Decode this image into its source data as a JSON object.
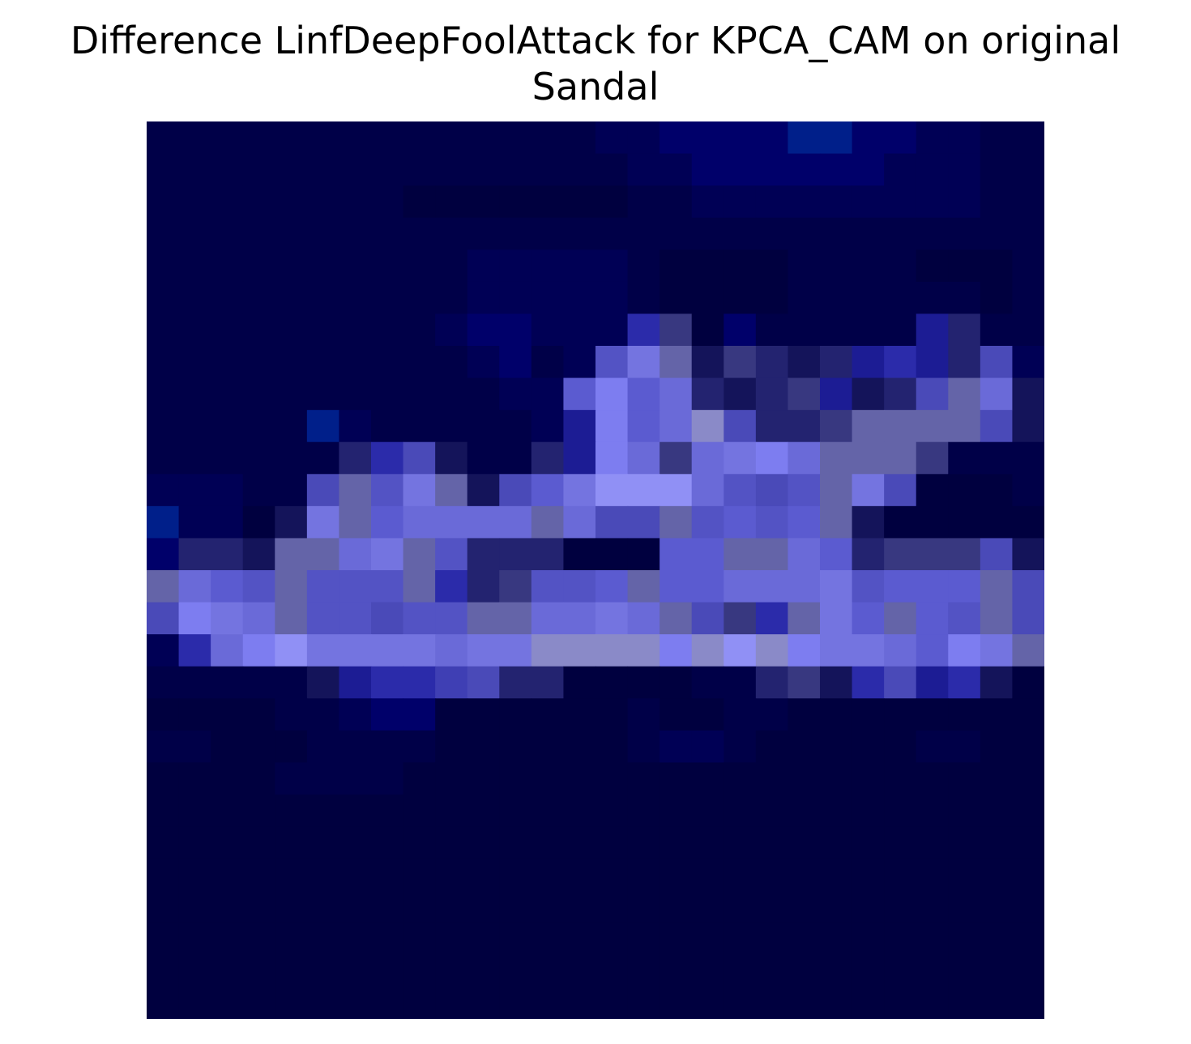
{
  "chart_data": {
    "type": "heatmap",
    "title_line1": "Difference LinfDeepFoolAttack for KPCA_CAM on original",
    "title_line2": "Sandal",
    "xlabel": "",
    "ylabel": "",
    "axes_visible": false,
    "grid": false,
    "legend": "none",
    "rows": 28,
    "cols": 28,
    "colormap": "dark-navy to light-periwinkle",
    "palette": {
      "0": "#00003f",
      "1": "#000048",
      "2": "#000055",
      "3": "#00006a",
      "4": "#001f8a",
      "5": "#14145a",
      "6": "#232370",
      "7": "#1c1c94",
      "8": "#2b2baa",
      "9": "#383880",
      "10": "#3f3fb4",
      "11": "#4a4ab8",
      "12": "#5353c4",
      "13": "#5b5bd0",
      "14": "#6464a8",
      "15": "#6a6ad8",
      "16": "#7474e0",
      "17": "#7d7df0",
      "18": "#8a8ac8",
      "19": "#9090f5"
    },
    "values": [
      [
        1,
        1,
        1,
        1,
        1,
        1,
        1,
        1,
        1,
        1,
        1,
        1,
        1,
        1,
        2,
        2,
        3,
        3,
        3,
        3,
        4,
        4,
        3,
        3,
        2,
        2,
        1,
        1
      ],
      [
        1,
        1,
        1,
        1,
        1,
        1,
        1,
        1,
        1,
        1,
        1,
        1,
        1,
        1,
        1,
        2,
        2,
        3,
        3,
        3,
        3,
        3,
        3,
        2,
        2,
        2,
        1,
        1
      ],
      [
        1,
        1,
        1,
        1,
        1,
        1,
        1,
        1,
        0,
        0,
        0,
        0,
        0,
        0,
        0,
        1,
        1,
        2,
        2,
        2,
        2,
        2,
        2,
        2,
        2,
        2,
        1,
        1
      ],
      [
        1,
        1,
        1,
        1,
        1,
        1,
        1,
        1,
        1,
        1,
        1,
        1,
        1,
        1,
        1,
        1,
        1,
        1,
        1,
        1,
        1,
        1,
        1,
        1,
        1,
        1,
        1,
        1
      ],
      [
        1,
        1,
        1,
        1,
        1,
        1,
        1,
        1,
        1,
        1,
        2,
        2,
        2,
        2,
        2,
        1,
        0,
        0,
        0,
        0,
        1,
        1,
        1,
        1,
        0,
        0,
        0,
        1
      ],
      [
        1,
        1,
        1,
        1,
        1,
        1,
        1,
        1,
        1,
        1,
        2,
        2,
        2,
        2,
        2,
        1,
        0,
        0,
        0,
        0,
        1,
        1,
        1,
        1,
        1,
        1,
        0,
        1
      ],
      [
        1,
        1,
        1,
        1,
        1,
        1,
        1,
        1,
        1,
        2,
        3,
        3,
        2,
        2,
        2,
        8,
        9,
        0,
        3,
        1,
        1,
        1,
        1,
        1,
        7,
        6,
        1,
        1
      ],
      [
        1,
        1,
        1,
        1,
        1,
        1,
        1,
        1,
        1,
        1,
        2,
        3,
        1,
        2,
        12,
        16,
        14,
        5,
        9,
        6,
        5,
        6,
        7,
        8,
        7,
        6,
        11,
        2
      ],
      [
        1,
        1,
        1,
        1,
        1,
        1,
        1,
        1,
        1,
        1,
        1,
        2,
        2,
        13,
        17,
        13,
        15,
        6,
        5,
        6,
        9,
        7,
        5,
        6,
        11,
        14,
        15,
        5
      ],
      [
        1,
        1,
        1,
        1,
        1,
        4,
        2,
        1,
        1,
        1,
        1,
        1,
        2,
        7,
        17,
        13,
        15,
        18,
        11,
        6,
        6,
        9,
        14,
        14,
        14,
        14,
        11,
        5
      ],
      [
        1,
        1,
        1,
        1,
        1,
        1,
        6,
        8,
        11,
        5,
        1,
        1,
        6,
        7,
        17,
        15,
        9,
        15,
        16,
        17,
        15,
        14,
        14,
        14,
        9,
        1,
        1,
        1
      ],
      [
        2,
        2,
        2,
        1,
        1,
        11,
        14,
        12,
        16,
        14,
        5,
        11,
        13,
        16,
        19,
        19,
        19,
        15,
        12,
        11,
        12,
        14,
        16,
        11,
        0,
        0,
        0,
        1
      ],
      [
        4,
        2,
        2,
        0,
        5,
        16,
        14,
        13,
        15,
        15,
        15,
        15,
        14,
        15,
        11,
        11,
        14,
        12,
        13,
        12,
        13,
        14,
        5,
        0,
        0,
        0,
        0,
        0
      ],
      [
        3,
        6,
        6,
        5,
        14,
        14,
        15,
        16,
        14,
        12,
        6,
        6,
        6,
        0,
        0,
        0,
        13,
        13,
        14,
        14,
        15,
        13,
        6,
        9,
        9,
        9,
        11,
        5
      ],
      [
        14,
        15,
        13,
        12,
        14,
        12,
        12,
        12,
        14,
        8,
        6,
        9,
        12,
        12,
        13,
        14,
        13,
        13,
        15,
        15,
        15,
        16,
        12,
        13,
        13,
        13,
        14,
        11
      ],
      [
        11,
        17,
        16,
        15,
        14,
        12,
        12,
        11,
        12,
        12,
        14,
        14,
        15,
        15,
        16,
        15,
        14,
        11,
        9,
        8,
        14,
        16,
        13,
        14,
        13,
        12,
        14,
        11
      ],
      [
        2,
        8,
        15,
        17,
        19,
        16,
        16,
        16,
        16,
        15,
        16,
        16,
        18,
        18,
        18,
        18,
        17,
        18,
        19,
        18,
        17,
        16,
        16,
        15,
        13,
        17,
        16,
        14
      ],
      [
        1,
        1,
        1,
        1,
        1,
        5,
        7,
        8,
        8,
        10,
        11,
        6,
        6,
        0,
        0,
        0,
        0,
        1,
        1,
        6,
        9,
        5,
        8,
        11,
        7,
        8,
        5,
        0
      ],
      [
        0,
        0,
        0,
        0,
        1,
        1,
        2,
        3,
        3,
        0,
        0,
        0,
        0,
        0,
        0,
        1,
        0,
        0,
        1,
        1,
        0,
        0,
        0,
        0,
        0,
        0,
        0,
        0
      ],
      [
        1,
        1,
        0,
        0,
        0,
        1,
        1,
        1,
        1,
        0,
        0,
        0,
        0,
        0,
        0,
        1,
        2,
        2,
        1,
        0,
        0,
        0,
        0,
        0,
        1,
        1,
        0,
        0
      ],
      [
        0,
        0,
        0,
        0,
        1,
        1,
        1,
        1,
        0,
        0,
        0,
        0,
        0,
        0,
        0,
        0,
        0,
        0,
        0,
        0,
        0,
        0,
        0,
        0,
        0,
        0,
        0,
        0
      ],
      [
        0,
        0,
        0,
        0,
        0,
        0,
        0,
        0,
        0,
        0,
        0,
        0,
        0,
        0,
        0,
        0,
        0,
        0,
        0,
        0,
        0,
        0,
        0,
        0,
        0,
        0,
        0,
        0
      ],
      [
        0,
        0,
        0,
        0,
        0,
        0,
        0,
        0,
        0,
        0,
        0,
        0,
        0,
        0,
        0,
        0,
        0,
        0,
        0,
        0,
        0,
        0,
        0,
        0,
        0,
        0,
        0,
        0
      ],
      [
        0,
        0,
        0,
        0,
        0,
        0,
        0,
        0,
        0,
        0,
        0,
        0,
        0,
        0,
        0,
        0,
        0,
        0,
        0,
        0,
        0,
        0,
        0,
        0,
        0,
        0,
        0,
        0
      ],
      [
        0,
        0,
        0,
        0,
        0,
        0,
        0,
        0,
        0,
        0,
        0,
        0,
        0,
        0,
        0,
        0,
        0,
        0,
        0,
        0,
        0,
        0,
        0,
        0,
        0,
        0,
        0,
        0
      ],
      [
        0,
        0,
        0,
        0,
        0,
        0,
        0,
        0,
        0,
        0,
        0,
        0,
        0,
        0,
        0,
        0,
        0,
        0,
        0,
        0,
        0,
        0,
        0,
        0,
        0,
        0,
        0,
        0
      ],
      [
        0,
        0,
        0,
        0,
        0,
        0,
        0,
        0,
        0,
        0,
        0,
        0,
        0,
        0,
        0,
        0,
        0,
        0,
        0,
        0,
        0,
        0,
        0,
        0,
        0,
        0,
        0,
        0
      ],
      [
        0,
        0,
        0,
        0,
        0,
        0,
        0,
        0,
        0,
        0,
        0,
        0,
        0,
        0,
        0,
        0,
        0,
        0,
        0,
        0,
        0,
        0,
        0,
        0,
        0,
        0,
        0,
        0
      ]
    ]
  }
}
